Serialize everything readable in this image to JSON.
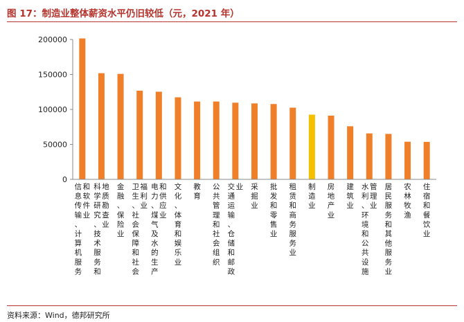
{
  "figure": {
    "title": "图 17：制造业整体薪资水平仍旧较低（元，2021 年）",
    "source": "资料来源：Wind，德邦研究所"
  },
  "colors": {
    "bar": "#f07f2a",
    "highlight": "#f5c000",
    "axis": "#888888",
    "title": "#b5342d"
  },
  "chart_data": {
    "type": "bar",
    "title": "",
    "xlabel": "",
    "ylabel": "",
    "ylim": [
      0,
      200000
    ],
    "yticks": [
      0,
      50000,
      100000,
      150000,
      200000
    ],
    "ytick_labels": [
      "0",
      "50000",
      "100000",
      "150000",
      "200000"
    ],
    "grid": false,
    "legend": "none",
    "highlight_category": "制造业",
    "categories": [
      "信息传输、计算机服务和软件业",
      "科学研究、技术服务和地质勘查业",
      "金融、保险业",
      "卫生、社会保障和社会福利业",
      "电力、煤气及水的生产和供应业",
      "文化、体育和娱乐业",
      "教育",
      "公共管理和社会组织",
      "交通运输、仓储和邮政业",
      "采掘业",
      "批发和零售业",
      "租赁和商务服务业",
      "制造业",
      "房地产业",
      "建筑业",
      "水利、环境和公共设施管理业",
      "居民服务和其他服务业",
      "农林牧渔",
      "住宿和餐饮业"
    ],
    "values": [
      201500,
      151800,
      150800,
      126800,
      125300,
      117300,
      111300,
      111300,
      109600,
      108600,
      107700,
      102500,
      92500,
      91100,
      75900,
      65700,
      65000,
      53800,
      53600
    ]
  }
}
